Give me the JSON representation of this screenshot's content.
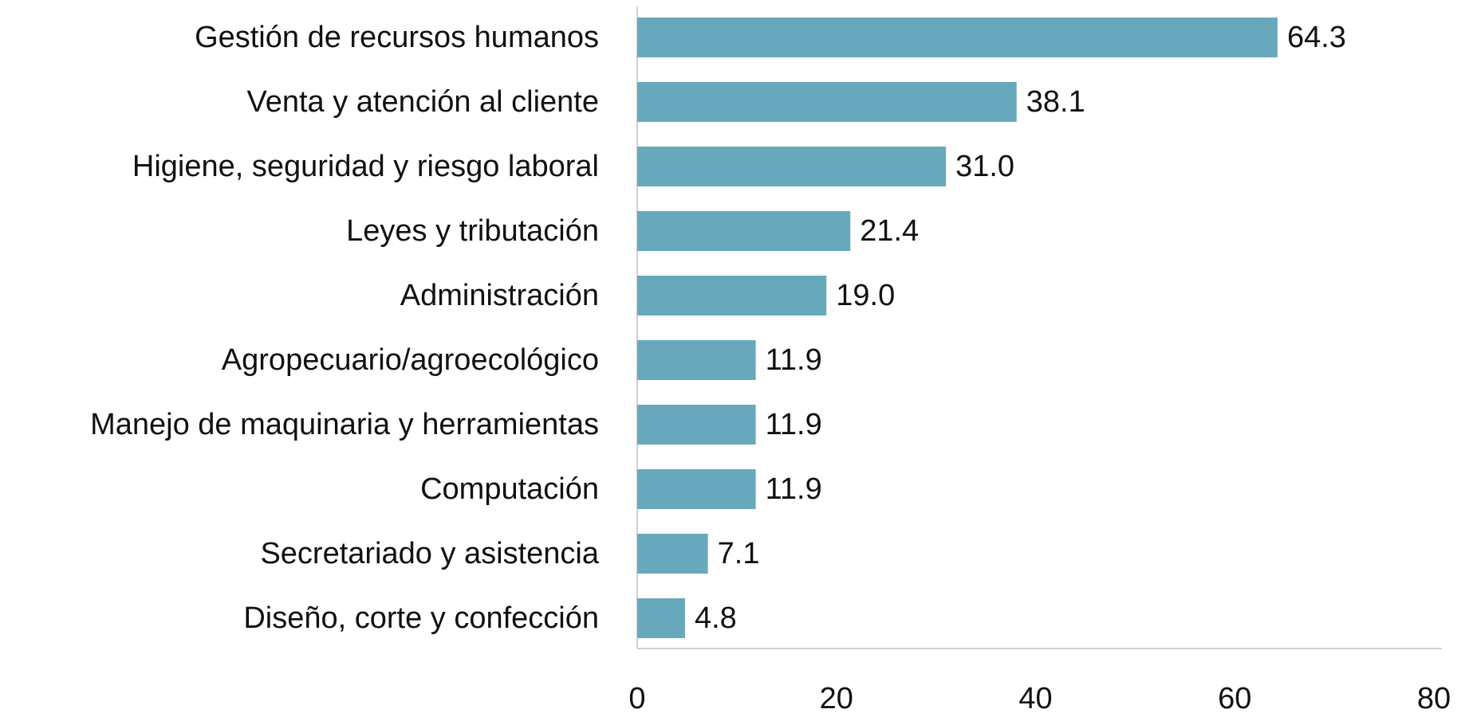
{
  "chart_data": {
    "type": "bar",
    "orientation": "horizontal",
    "categories": [
      "Gestión de recursos humanos",
      "Venta y atención al cliente",
      "Higiene, seguridad y riesgo laboral",
      "Leyes y tributación",
      "Administración",
      "Agropecuario/agroecológico",
      "Manejo de maquinaria y herramientas",
      "Computación",
      "Secretariado y asistencia",
      "Diseño, corte y confección"
    ],
    "values": [
      64.3,
      38.1,
      31.0,
      21.4,
      19.0,
      11.9,
      11.9,
      11.9,
      7.1,
      4.8
    ],
    "value_labels": [
      "64.3",
      "38.1",
      "31.0",
      "21.4",
      "19.0",
      "11.9",
      "11.9",
      "11.9",
      "7.1",
      "4.8"
    ],
    "color": "#68a8bd",
    "xlim": [
      0,
      80
    ],
    "xticks": [
      0,
      20,
      40,
      60,
      80
    ],
    "grid": false
  }
}
